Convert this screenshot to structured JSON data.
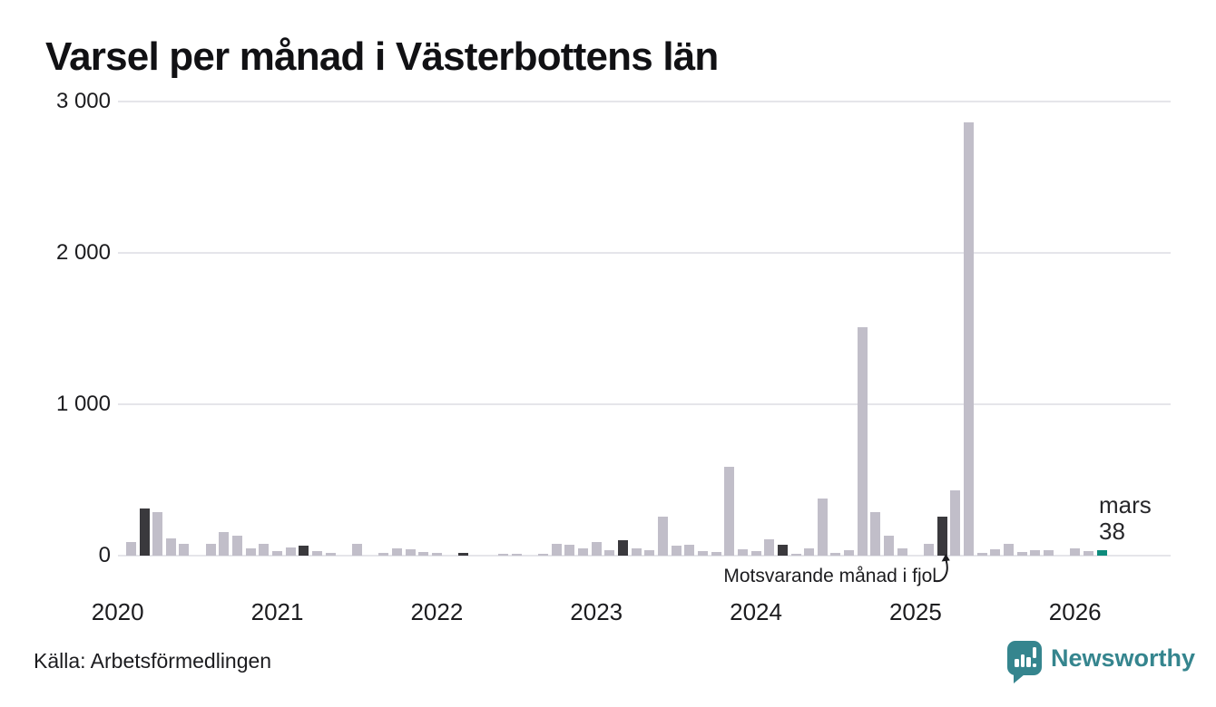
{
  "header": {
    "title": "Varsel per månad i Västerbottens län"
  },
  "chart_data": {
    "type": "bar",
    "title": "Varsel per månad i Västerbottens län",
    "xlabel": "",
    "ylabel": "",
    "ylim": [
      0,
      3000
    ],
    "grid": "horizontal",
    "yticks": [
      {
        "value": 0,
        "label": "0"
      },
      {
        "value": 1000,
        "label": "1 000"
      },
      {
        "value": 2000,
        "label": "2 000"
      },
      {
        "value": 3000,
        "label": "3 000"
      }
    ],
    "x_years": [
      2020,
      2021,
      2022,
      2023,
      2024,
      2025,
      2026
    ],
    "series": [
      {
        "year": 2020,
        "values": [
          0,
          90,
          310,
          290,
          115,
          80,
          0,
          75,
          155,
          130,
          45,
          80
        ]
      },
      {
        "year": 2021,
        "values": [
          30,
          55,
          65,
          30,
          15,
          0,
          75,
          0,
          15,
          45,
          40,
          25
        ]
      },
      {
        "year": 2022,
        "values": [
          20,
          0,
          15,
          0,
          0,
          10,
          10,
          0,
          10,
          75,
          70,
          50
        ]
      },
      {
        "year": 2023,
        "values": [
          90,
          35,
          100,
          45,
          35,
          255,
          65,
          70,
          30,
          25,
          585,
          40
        ]
      },
      {
        "year": 2024,
        "values": [
          30,
          105,
          70,
          10,
          45,
          380,
          20,
          35,
          1510,
          285,
          130,
          50
        ]
      },
      {
        "year": 2025,
        "values": [
          0,
          80,
          260,
          430,
          2860,
          20,
          40,
          75,
          25,
          35,
          35,
          0
        ]
      },
      {
        "year": 2026,
        "values": [
          50,
          30,
          38
        ]
      }
    ],
    "highlight": {
      "same_month_index": 2,
      "latest_year": 2026,
      "latest_month_label": "mars",
      "latest_value": 38,
      "annotation": "Motsvarande månad i fjol"
    },
    "colors": {
      "bar": "#c1bec9",
      "same_month": "#3a393d",
      "latest": "#0e8b7c",
      "gridline": "#e5e5ea"
    }
  },
  "annotation": {
    "text": "Motsvarande månad i fjol"
  },
  "latest_label": {
    "line1": "mars",
    "line2": "38"
  },
  "footer": {
    "source": "Källa: Arbetsförmedlingen",
    "brand": "Newsworthy",
    "brand_color": "#35858e"
  }
}
